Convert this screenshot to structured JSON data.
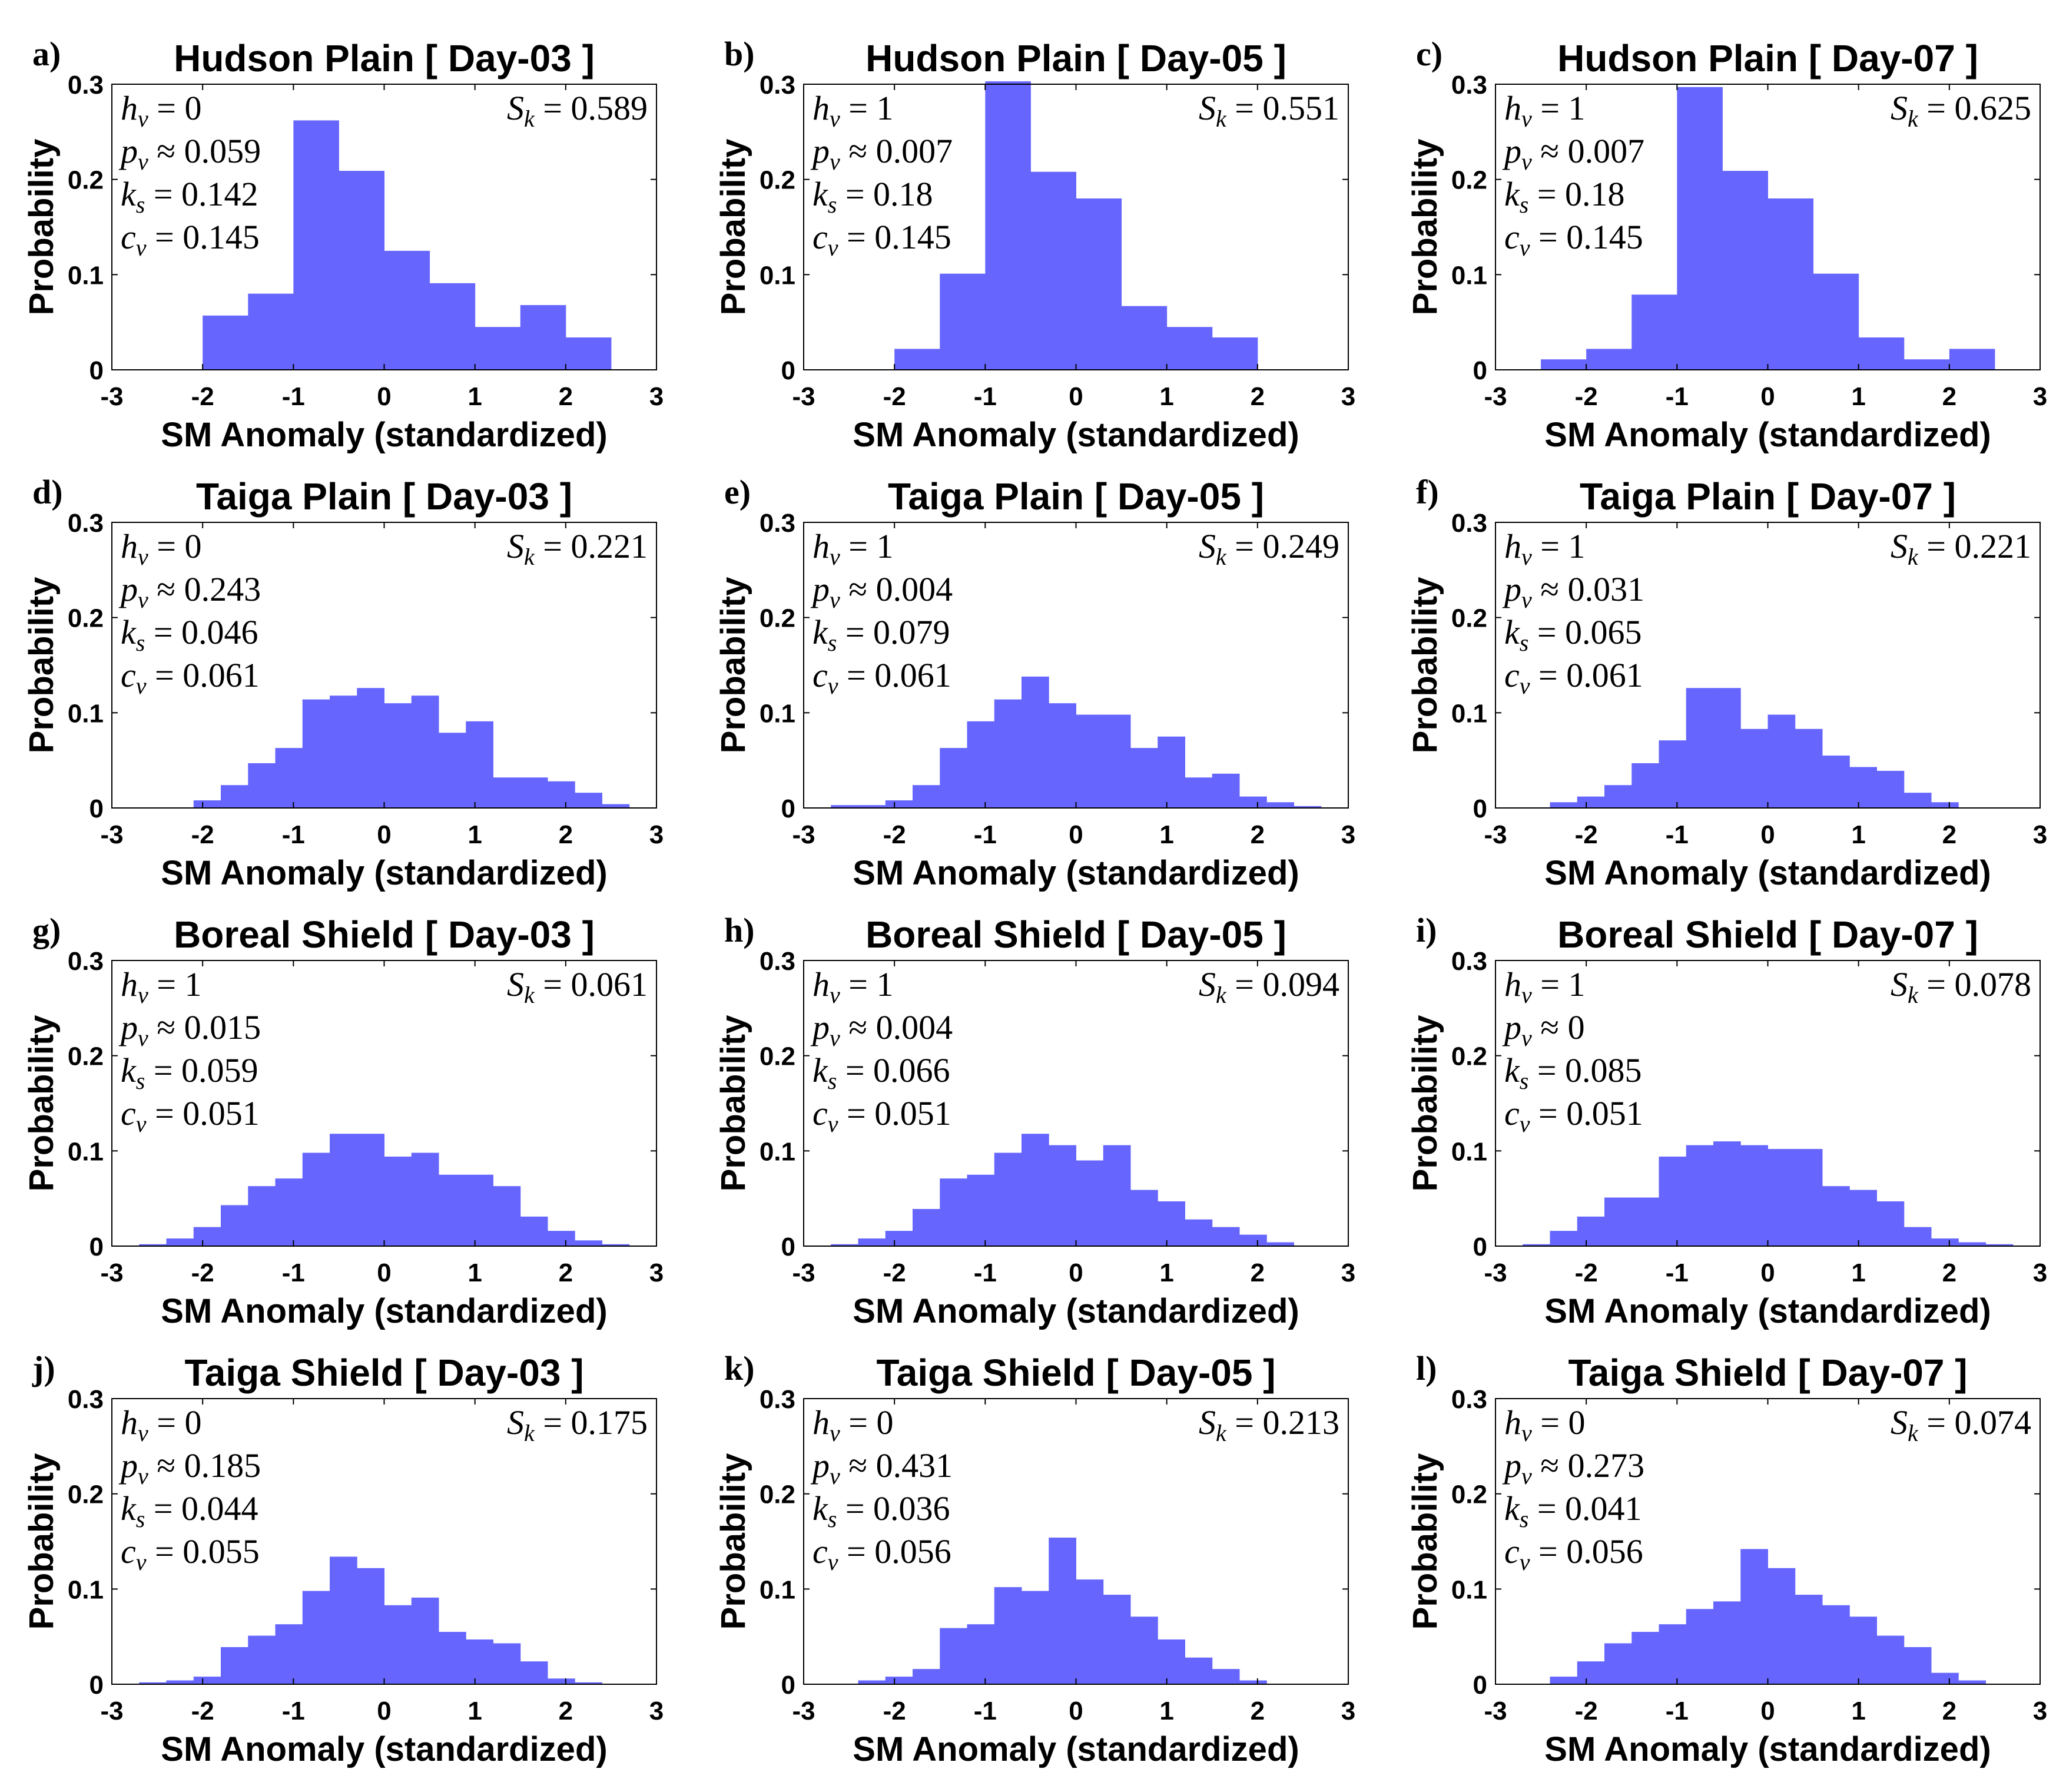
{
  "figure": {
    "xlabel": "SM Anomaly (standardized)",
    "ylabel": "Probability",
    "bar_color": "#6666FF"
  },
  "chart_data": [
    {
      "type": "bar",
      "label": "a)",
      "title": "Hudson Plain [ Day-03 ]",
      "xlabel": "SM Anomaly (standardized)",
      "ylabel": "Probability",
      "xlim": [
        -3,
        3
      ],
      "ylim": [
        0,
        0.3
      ],
      "xticks": [
        "-3",
        "-2",
        "-1",
        "0",
        "1",
        "2",
        "3"
      ],
      "yticks": [
        "0",
        "0.1",
        "0.2",
        "0.3"
      ],
      "bin_width": 0.5,
      "bin_start": -2.0,
      "values": [
        0.057,
        0.08,
        0.262,
        0.209,
        0.125,
        0.091,
        0.045,
        0.068,
        0.034
      ],
      "stats": {
        "hv": "h_v = 0",
        "pv": "p_v ≈ 0.059",
        "ks": "k_s = 0.142",
        "cv": "c_v = 0.145",
        "sk": "S_k = 0.589"
      }
    },
    {
      "type": "bar",
      "label": "b)",
      "title": "Hudson Plain [ Day-05 ]",
      "xlabel": "SM Anomaly (standardized)",
      "ylabel": "Probability",
      "xlim": [
        -3,
        3
      ],
      "ylim": [
        0,
        0.3
      ],
      "xticks": [
        "-3",
        "-2",
        "-1",
        "0",
        "1",
        "2",
        "3"
      ],
      "yticks": [
        "0",
        "0.1",
        "0.2",
        "0.3"
      ],
      "bin_width": 0.5,
      "bin_start": -2.0,
      "values": [
        0.022,
        0.101,
        0.303,
        0.208,
        0.18,
        0.067,
        0.045,
        0.034
      ],
      "stats": {
        "hv": "h_v = 1",
        "pv": "p_v ≈ 0.007",
        "ks": "k_s = 0.18",
        "cv": "c_v = 0.145",
        "sk": "S_k = 0.551"
      }
    },
    {
      "type": "bar",
      "label": "c)",
      "title": "Hudson Plain [ Day-07 ]",
      "xlabel": "SM Anomaly (standardized)",
      "ylabel": "Probability",
      "xlim": [
        -3,
        3
      ],
      "ylim": [
        0,
        0.3
      ],
      "xticks": [
        "-3",
        "-2",
        "-1",
        "0",
        "1",
        "2",
        "3"
      ],
      "yticks": [
        "0",
        "0.1",
        "0.2",
        "0.3"
      ],
      "bin_width": 0.5,
      "bin_start": -2.5,
      "values": [
        0.011,
        0.022,
        0.079,
        0.297,
        0.209,
        0.18,
        0.101,
        0.034,
        0.011,
        0.022
      ],
      "stats": {
        "hv": "h_v = 1",
        "pv": "p_v ≈ 0.007",
        "ks": "k_s = 0.18",
        "cv": "c_v = 0.145",
        "sk": "S_k = 0.625"
      }
    },
    {
      "type": "bar",
      "label": "d)",
      "title": "Taiga Plain [ Day-03 ]",
      "xlabel": "SM Anomaly (standardized)",
      "ylabel": "Probability",
      "xlim": [
        -3,
        3
      ],
      "ylim": [
        0,
        0.3
      ],
      "xticks": [
        "-3",
        "-2",
        "-1",
        "0",
        "1",
        "2",
        "3"
      ],
      "yticks": [
        "0",
        "0.1",
        "0.2",
        "0.3"
      ],
      "bin_width": 0.3,
      "bin_start": -2.1,
      "values": [
        0.008,
        0.024,
        0.047,
        0.063,
        0.114,
        0.118,
        0.126,
        0.11,
        0.118,
        0.079,
        0.091,
        0.032,
        0.032,
        0.028,
        0.016,
        0.004
      ],
      "stats": {
        "hv": "h_v = 0",
        "pv": "p_v ≈ 0.243",
        "ks": "k_s = 0.046",
        "cv": "c_v = 0.061",
        "sk": "S_k = 0.221"
      }
    },
    {
      "type": "bar",
      "label": "e)",
      "title": "Taiga Plain [ Day-05 ]",
      "xlabel": "SM Anomaly (standardized)",
      "ylabel": "Probability",
      "xlim": [
        -3,
        3
      ],
      "ylim": [
        0,
        0.3
      ],
      "xticks": [
        "-3",
        "-2",
        "-1",
        "0",
        "1",
        "2",
        "3"
      ],
      "yticks": [
        "0",
        "0.1",
        "0.2",
        "0.3"
      ],
      "bin_width": 0.3,
      "bin_start": -2.7,
      "values": [
        0.003,
        0.003,
        0.008,
        0.024,
        0.063,
        0.091,
        0.114,
        0.138,
        0.11,
        0.098,
        0.098,
        0.063,
        0.075,
        0.032,
        0.036,
        0.012,
        0.006,
        0.002
      ],
      "stats": {
        "hv": "h_v = 1",
        "pv": "p_v ≈ 0.004",
        "ks": "k_s = 0.079",
        "cv": "c_v = 0.061",
        "sk": "S_k = 0.249"
      }
    },
    {
      "type": "bar",
      "label": "f)",
      "title": "Taiga Plain [ Day-07 ]",
      "xlabel": "SM Anomaly (standardized)",
      "ylabel": "Probability",
      "xlim": [
        -3,
        3
      ],
      "ylim": [
        0,
        0.3
      ],
      "xticks": [
        "-3",
        "-2",
        "-1",
        "0",
        "1",
        "2",
        "3"
      ],
      "yticks": [
        "0",
        "0.1",
        "0.2",
        "0.3"
      ],
      "bin_width": 0.3,
      "bin_start": -2.4,
      "values": [
        0.006,
        0.012,
        0.024,
        0.047,
        0.071,
        0.126,
        0.126,
        0.083,
        0.098,
        0.083,
        0.055,
        0.043,
        0.039,
        0.016,
        0.006
      ],
      "stats": {
        "hv": "h_v = 1",
        "pv": "p_v ≈ 0.031",
        "ks": "k_s = 0.065",
        "cv": "c_v = 0.061",
        "sk": "S_k = 0.221"
      }
    },
    {
      "type": "bar",
      "label": "g)",
      "title": "Boreal Shield [ Day-03 ]",
      "xlabel": "SM Anomaly (standardized)",
      "ylabel": "Probability",
      "xlim": [
        -3,
        3
      ],
      "ylim": [
        0,
        0.3
      ],
      "xticks": [
        "-3",
        "-2",
        "-1",
        "0",
        "1",
        "2",
        "3"
      ],
      "yticks": [
        "0",
        "0.1",
        "0.2",
        "0.3"
      ],
      "bin_width": 0.3,
      "bin_start": -2.7,
      "values": [
        0.002,
        0.008,
        0.02,
        0.043,
        0.063,
        0.071,
        0.098,
        0.118,
        0.118,
        0.094,
        0.098,
        0.075,
        0.075,
        0.063,
        0.031,
        0.016,
        0.006,
        0.002
      ],
      "stats": {
        "hv": "h_v = 1",
        "pv": "p_v ≈ 0.015",
        "ks": "k_s = 0.059",
        "cv": "c_v = 0.051",
        "sk": "S_k = 0.061"
      }
    },
    {
      "type": "bar",
      "label": "h)",
      "title": "Boreal Shield [ Day-05 ]",
      "xlabel": "SM Anomaly (standardized)",
      "ylabel": "Probability",
      "xlim": [
        -3,
        3
      ],
      "ylim": [
        0,
        0.3
      ],
      "xticks": [
        "-3",
        "-2",
        "-1",
        "0",
        "1",
        "2",
        "3"
      ],
      "yticks": [
        "0",
        "0.1",
        "0.2",
        "0.3"
      ],
      "bin_width": 0.3,
      "bin_start": -2.7,
      "values": [
        0.002,
        0.008,
        0.016,
        0.039,
        0.071,
        0.075,
        0.098,
        0.118,
        0.106,
        0.09,
        0.106,
        0.059,
        0.047,
        0.028,
        0.02,
        0.012,
        0.004
      ],
      "stats": {
        "hv": "h_v = 1",
        "pv": "p_v ≈ 0.004",
        "ks": "k_s = 0.066",
        "cv": "c_v = 0.051",
        "sk": "S_k = 0.094"
      }
    },
    {
      "type": "bar",
      "label": "i)",
      "title": "Boreal Shield [ Day-07 ]",
      "xlabel": "SM Anomaly (standardized)",
      "ylabel": "Probability",
      "xlim": [
        -3,
        3
      ],
      "ylim": [
        0,
        0.3
      ],
      "xticks": [
        "-3",
        "-2",
        "-1",
        "0",
        "1",
        "2",
        "3"
      ],
      "yticks": [
        "0",
        "0.1",
        "0.2",
        "0.3"
      ],
      "bin_width": 0.3,
      "bin_start": -2.7,
      "values": [
        0.002,
        0.016,
        0.031,
        0.051,
        0.051,
        0.094,
        0.106,
        0.11,
        0.106,
        0.102,
        0.102,
        0.063,
        0.059,
        0.047,
        0.02,
        0.008,
        0.004,
        0.002
      ],
      "stats": {
        "hv": "h_v = 1",
        "pv": "p_v ≈ 0",
        "ks": "k_s = 0.085",
        "cv": "c_v = 0.051",
        "sk": "S_k = 0.078"
      }
    },
    {
      "type": "bar",
      "label": "j)",
      "title": "Taiga Shield [ Day-03 ]",
      "xlabel": "SM Anomaly (standardized)",
      "ylabel": "Probability",
      "xlim": [
        -3,
        3
      ],
      "ylim": [
        0,
        0.3
      ],
      "xticks": [
        "-3",
        "-2",
        "-1",
        "0",
        "1",
        "2",
        "3"
      ],
      "yticks": [
        "0",
        "0.1",
        "0.2",
        "0.3"
      ],
      "bin_width": 0.3,
      "bin_start": -2.7,
      "values": [
        0.002,
        0.004,
        0.008,
        0.039,
        0.051,
        0.063,
        0.098,
        0.134,
        0.122,
        0.083,
        0.091,
        0.055,
        0.047,
        0.043,
        0.024,
        0.006,
        0.002
      ],
      "stats": {
        "hv": "h_v = 0",
        "pv": "p_v ≈ 0.185",
        "ks": "k_s = 0.044",
        "cv": "c_v = 0.055",
        "sk": "S_k = 0.175"
      }
    },
    {
      "type": "bar",
      "label": "k)",
      "title": "Taiga Shield [ Day-05 ]",
      "xlabel": "SM Anomaly (standardized)",
      "ylabel": "Probability",
      "xlim": [
        -3,
        3
      ],
      "ylim": [
        0,
        0.3
      ],
      "xticks": [
        "-3",
        "-2",
        "-1",
        "0",
        "1",
        "2",
        "3"
      ],
      "yticks": [
        "0",
        "0.1",
        "0.2",
        "0.3"
      ],
      "bin_width": 0.3,
      "bin_start": -2.4,
      "values": [
        0.004,
        0.008,
        0.016,
        0.059,
        0.063,
        0.102,
        0.098,
        0.154,
        0.11,
        0.094,
        0.071,
        0.047,
        0.028,
        0.016,
        0.004
      ],
      "stats": {
        "hv": "h_v = 0",
        "pv": "p_v ≈ 0.431",
        "ks": "k_s = 0.036",
        "cv": "c_v = 0.056",
        "sk": "S_k = 0.213"
      }
    },
    {
      "type": "bar",
      "label": "l)",
      "title": "Taiga Shield [ Day-07 ]",
      "xlabel": "SM Anomaly (standardized)",
      "ylabel": "Probability",
      "xlim": [
        -3,
        3
      ],
      "ylim": [
        0,
        0.3
      ],
      "xticks": [
        "-3",
        "-2",
        "-1",
        "0",
        "1",
        "2",
        "3"
      ],
      "yticks": [
        "0",
        "0.1",
        "0.2",
        "0.3"
      ],
      "bin_width": 0.3,
      "bin_start": -2.4,
      "values": [
        0.008,
        0.024,
        0.043,
        0.055,
        0.063,
        0.079,
        0.087,
        0.142,
        0.122,
        0.094,
        0.083,
        0.071,
        0.051,
        0.039,
        0.012,
        0.004
      ],
      "stats": {
        "hv": "h_v = 0",
        "pv": "p_v ≈ 0.273",
        "ks": "k_s = 0.041",
        "cv": "c_v = 0.056",
        "sk": "S_k = 0.074"
      }
    }
  ]
}
